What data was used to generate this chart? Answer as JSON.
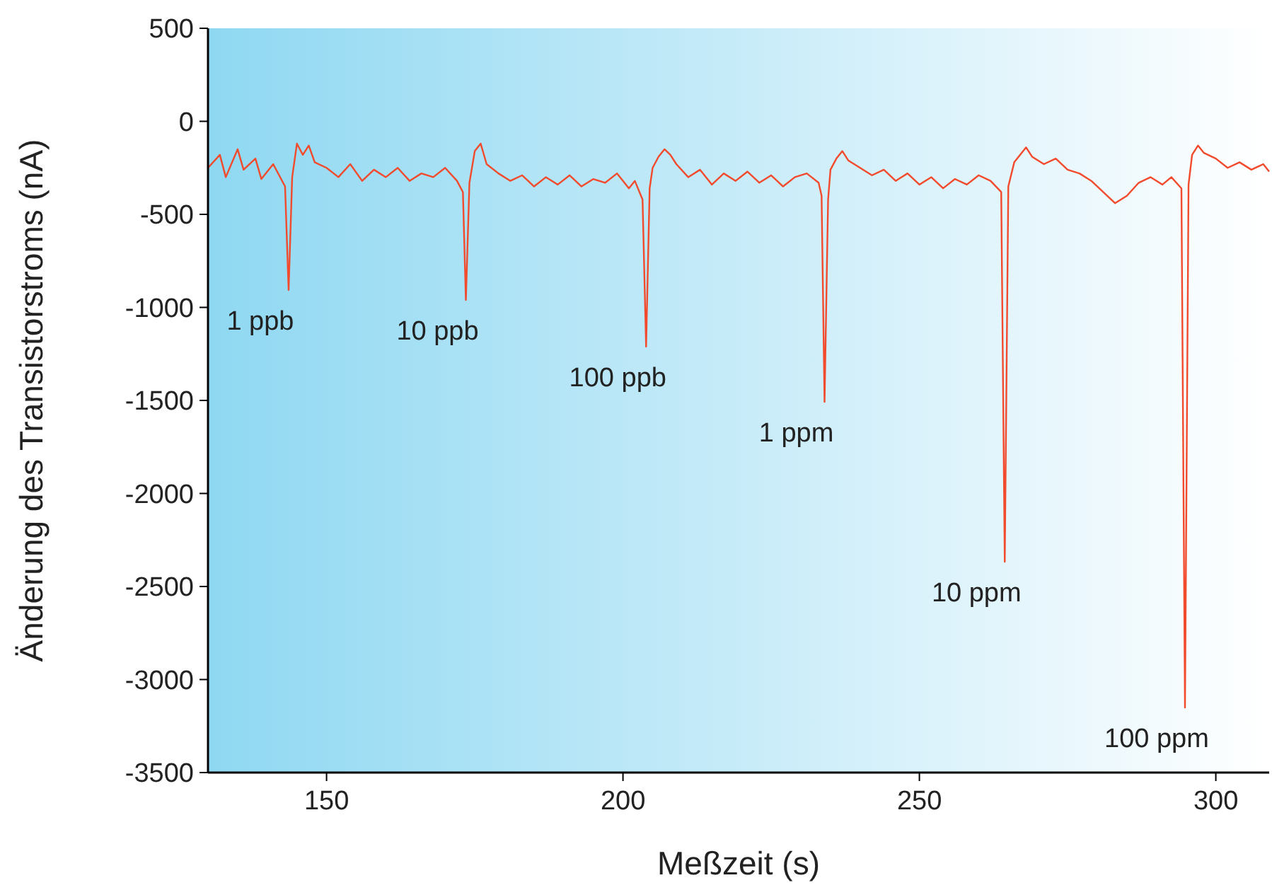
{
  "chart_data": {
    "type": "line",
    "xlabel": "Meßzeit (s)",
    "ylabel": "Änderung des Transistorstroms (nA)",
    "xlim": [
      130,
      309
    ],
    "xticks": [
      150,
      200,
      250,
      300
    ],
    "ylim": [
      -3500,
      500
    ],
    "yticks": [
      500,
      0,
      -500,
      -1000,
      -1500,
      -2000,
      -2500,
      -3000,
      -3500
    ],
    "grid": false,
    "marker": "none",
    "line_style": "solid",
    "series": [
      {
        "color": "#f24a2c",
        "x": [
          130,
          132,
          133,
          135,
          136,
          138,
          139,
          141,
          142,
          143,
          143.6,
          144.2,
          145,
          146,
          147,
          148,
          150,
          152,
          154,
          156,
          158,
          160,
          162,
          164,
          166,
          168,
          170,
          172,
          173,
          173.5,
          174.1,
          175,
          176,
          177,
          179,
          181,
          183,
          185,
          187,
          189,
          191,
          193,
          195,
          197,
          199,
          201,
          202,
          203.3,
          203.9,
          204.5,
          205,
          206,
          207,
          208,
          209,
          211,
          213,
          215,
          217,
          219,
          221,
          223,
          225,
          227,
          229,
          231,
          233,
          233.5,
          234,
          234.6,
          235,
          236,
          237,
          238,
          240,
          242,
          244,
          246,
          248,
          250,
          252,
          254,
          256,
          258,
          260,
          262,
          263.8,
          264.4,
          265,
          266,
          267,
          268,
          269,
          271,
          273,
          275,
          277,
          279,
          281,
          283,
          285,
          287,
          289,
          291,
          292.5,
          294.2,
          294.8,
          295.4,
          296,
          297,
          298,
          300,
          302,
          304,
          306,
          308,
          309
        ],
        "values": [
          -250,
          -180,
          -300,
          -150,
          -260,
          -200,
          -310,
          -230,
          -290,
          -350,
          -907,
          -300,
          -120,
          -180,
          -130,
          -220,
          -250,
          -300,
          -230,
          -320,
          -260,
          -300,
          -250,
          -320,
          -280,
          -300,
          -250,
          -320,
          -380,
          -960,
          -330,
          -160,
          -120,
          -230,
          -280,
          -320,
          -290,
          -350,
          -300,
          -340,
          -290,
          -350,
          -310,
          -330,
          -280,
          -360,
          -320,
          -420,
          -1211,
          -360,
          -250,
          -190,
          -150,
          -180,
          -230,
          -300,
          -260,
          -340,
          -280,
          -320,
          -270,
          -330,
          -290,
          -350,
          -300,
          -280,
          -330,
          -400,
          -1508,
          -420,
          -260,
          -200,
          -160,
          -210,
          -250,
          -290,
          -260,
          -320,
          -280,
          -340,
          -300,
          -360,
          -310,
          -340,
          -290,
          -320,
          -380,
          -2367,
          -350,
          -220,
          -180,
          -140,
          -190,
          -230,
          -200,
          -260,
          -280,
          -320,
          -380,
          -440,
          -400,
          -330,
          -300,
          -340,
          -300,
          -360,
          -3150,
          -340,
          -180,
          -130,
          -170,
          -200,
          -250,
          -220,
          -260,
          -230,
          -270
        ]
      }
    ],
    "annotations": [
      {
        "text": "1 ppb",
        "x": 143.6,
        "y": -907
      },
      {
        "text": "10 ppb",
        "x": 173.5,
        "y": -960
      },
      {
        "text": "100 ppb",
        "x": 203.9,
        "y": -1211
      },
      {
        "text": "1 ppm",
        "x": 234,
        "y": -1508
      },
      {
        "text": "10 ppm",
        "x": 264.4,
        "y": -2367
      },
      {
        "text": "100 ppm",
        "x": 294.8,
        "y": -3150
      }
    ]
  }
}
